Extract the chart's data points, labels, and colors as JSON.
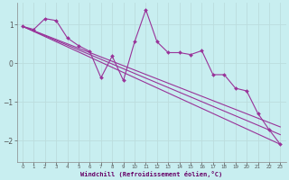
{
  "xlabel": "Windchill (Refroidissement éolien,°C)",
  "background_color": "#c8eef0",
  "grid_color": "#aadddd",
  "line_color": "#993399",
  "xlim": [
    -0.5,
    23.5
  ],
  "ylim": [
    -2.55,
    1.55
  ],
  "yticks": [
    -2,
    -1,
    0,
    1
  ],
  "xticks": [
    0,
    1,
    2,
    3,
    4,
    5,
    6,
    7,
    8,
    9,
    10,
    11,
    12,
    13,
    14,
    15,
    16,
    17,
    18,
    19,
    20,
    21,
    22,
    23
  ],
  "line1_x": [
    0,
    1,
    2,
    3,
    4,
    5,
    6,
    7,
    8,
    9,
    10,
    11,
    12,
    13,
    14,
    15,
    16,
    17,
    18,
    19,
    20,
    21,
    22,
    23
  ],
  "line1_y": [
    0.95,
    0.87,
    1.15,
    1.1,
    0.65,
    0.45,
    0.3,
    -0.38,
    0.18,
    -0.45,
    0.55,
    1.38,
    0.55,
    0.27,
    0.27,
    0.22,
    0.32,
    -0.3,
    -0.3,
    -0.65,
    -0.72,
    -1.3,
    -1.72,
    -2.1
  ],
  "line2_x": [
    0,
    23
  ],
  "line2_y": [
    0.95,
    -2.1
  ],
  "line3_x": [
    0,
    23
  ],
  "line3_y": [
    0.95,
    -1.85
  ],
  "line4_x": [
    0,
    23
  ],
  "line4_y": [
    0.95,
    -1.65
  ]
}
